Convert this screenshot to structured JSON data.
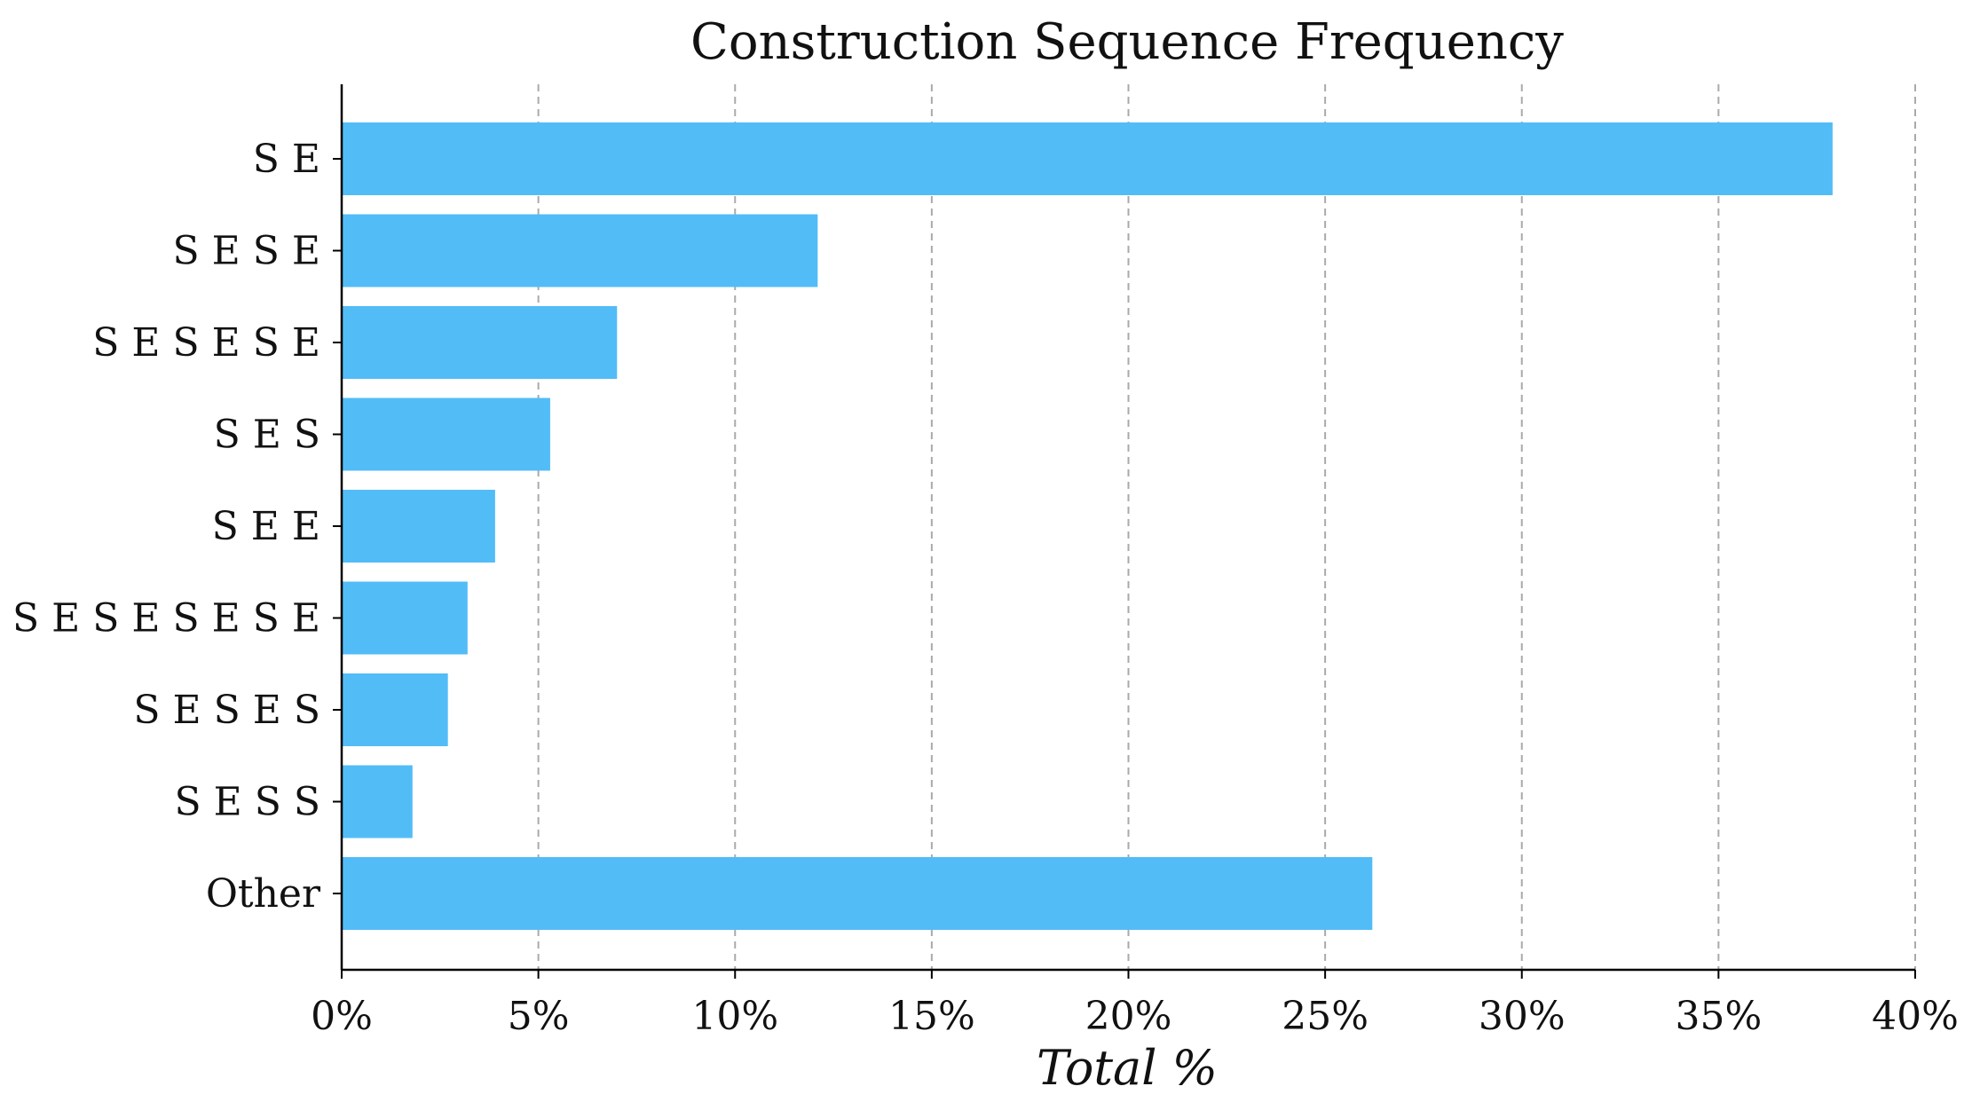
{
  "chart_data": {
    "type": "bar",
    "orientation": "horizontal",
    "title": "Construction Sequence Frequency",
    "xlabel": "Total %",
    "ylabel": "",
    "categories": [
      "S E",
      "S E S E",
      "S E S E S E",
      "S E S",
      "S E E",
      "S E S E S E S E",
      "S E S E S",
      "S E S S",
      "Other"
    ],
    "values": [
      37.9,
      12.1,
      7.0,
      5.3,
      3.9,
      3.2,
      2.7,
      1.8,
      26.2
    ],
    "xlim": [
      0,
      40
    ],
    "xticks": [
      0,
      5,
      10,
      15,
      20,
      25,
      30,
      35,
      40
    ],
    "xtick_labels": [
      "0%",
      "5%",
      "10%",
      "15%",
      "20%",
      "25%",
      "30%",
      "35%",
      "40%"
    ],
    "grid": "x dashed",
    "legend": "none"
  },
  "colors": {
    "bar": "#52bcf7",
    "grid": "#aaaaaa",
    "axis": "#000000",
    "text": "#111111"
  }
}
